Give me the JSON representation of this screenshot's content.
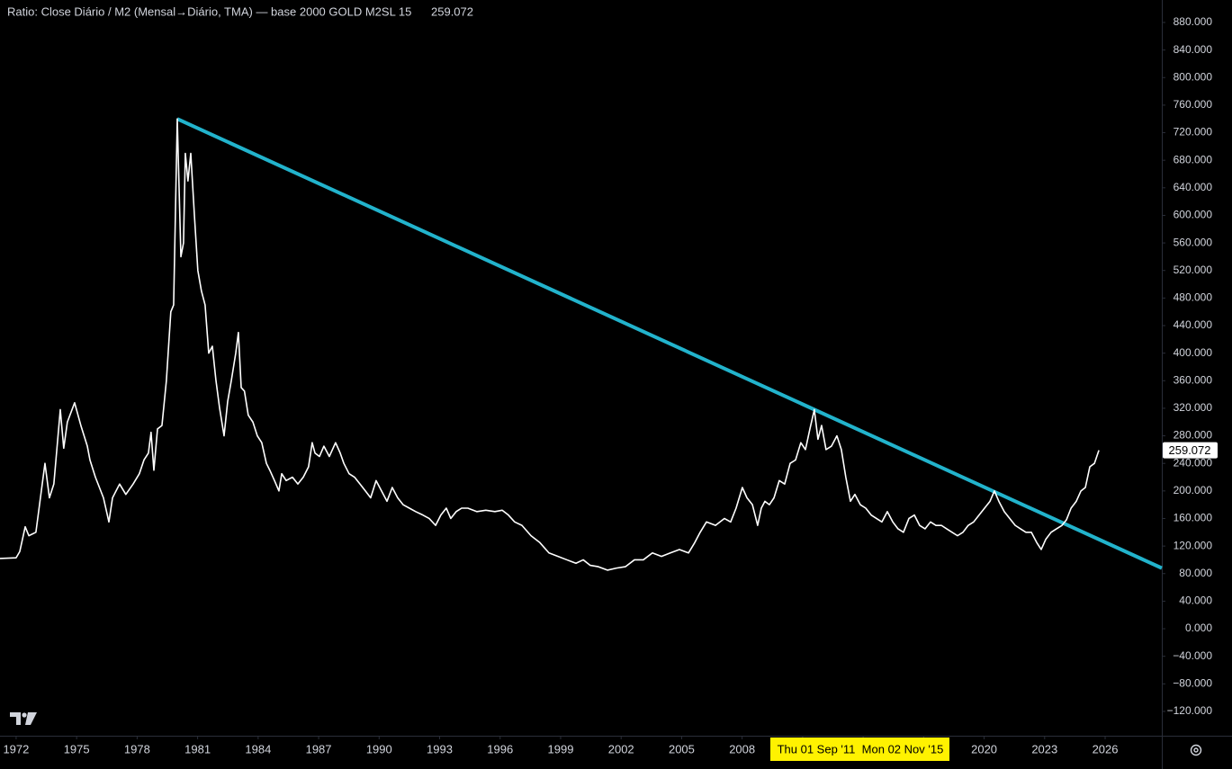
{
  "chart_data": {
    "type": "line",
    "title": "Ratio: Close Diário / M2 (Mensal→Diário, TMA) — base 2000 GOLD M2SL 15",
    "color": "#ffffff",
    "x": [
      1971.2,
      1972.0,
      1972.18,
      1972.45,
      1972.63,
      1972.98,
      1973.16,
      1973.43,
      1973.65,
      1973.87,
      1974.19,
      1974.36,
      1974.54,
      1974.9,
      1975.21,
      1975.53,
      1975.66,
      1975.93,
      1976.33,
      1976.6,
      1976.78,
      1977.13,
      1977.44,
      1977.8,
      1978.11,
      1978.34,
      1978.56,
      1978.69,
      1978.83,
      1979.01,
      1979.23,
      1979.45,
      1979.67,
      1979.81,
      1979.99,
      1980.17,
      1980.3,
      1980.39,
      1980.52,
      1980.66,
      1980.84,
      1981.01,
      1981.19,
      1981.37,
      1981.55,
      1981.73,
      1981.91,
      1982.09,
      1982.31,
      1982.49,
      1982.67,
      1982.89,
      1983.02,
      1983.16,
      1983.32,
      1983.51,
      1983.74,
      1983.96,
      1984.18,
      1984.41,
      1984.58,
      1984.81,
      1985.03,
      1985.17,
      1985.39,
      1985.7,
      1985.97,
      1986.24,
      1986.5,
      1986.68,
      1986.82,
      1987.04,
      1987.26,
      1987.53,
      1987.84,
      1988.07,
      1988.25,
      1988.51,
      1988.78,
      1989.05,
      1989.32,
      1989.58,
      1989.85,
      1990.12,
      1990.39,
      1990.65,
      1990.92,
      1991.19,
      1991.5,
      1991.81,
      1992.17,
      1992.48,
      1992.8,
      1993.06,
      1993.33,
      1993.55,
      1993.82,
      1994.09,
      1994.4,
      1994.85,
      1995.29,
      1995.74,
      1996.1,
      1996.41,
      1996.72,
      1997.08,
      1997.53,
      1997.97,
      1998.42,
      1998.87,
      1999.31,
      1999.76,
      2000.12,
      2000.47,
      2000.87,
      2001.32,
      2001.77,
      2002.21,
      2002.66,
      2003.1,
      2003.55,
      2004.0,
      2004.44,
      2004.89,
      2005.34,
      2005.65,
      2005.92,
      2006.23,
      2006.68,
      2007.12,
      2007.43,
      2007.7,
      2008.01,
      2008.24,
      2008.51,
      2008.77,
      2008.95,
      2009.13,
      2009.35,
      2009.58,
      2009.84,
      2010.11,
      2010.38,
      2010.65,
      2010.91,
      2011.14,
      2011.36,
      2011.58,
      2011.76,
      2011.94,
      2012.16,
      2012.43,
      2012.7,
      2012.92,
      2013.14,
      2013.37,
      2013.59,
      2013.86,
      2014.13,
      2014.4,
      2014.66,
      2014.93,
      2015.2,
      2015.47,
      2015.73,
      2016.0,
      2016.27,
      2016.54,
      2016.8,
      2017.07,
      2017.34,
      2017.61,
      2017.88,
      2018.14,
      2018.41,
      2018.68,
      2018.95,
      2019.21,
      2019.48,
      2019.75,
      2020.02,
      2020.29,
      2020.51,
      2020.73,
      2021.0,
      2021.27,
      2021.54,
      2021.8,
      2022.07,
      2022.34,
      2022.61,
      2022.83,
      2023.06,
      2023.32,
      2023.59,
      2023.86,
      2024.08,
      2024.31,
      2024.57,
      2024.8,
      2025.02,
      2025.24,
      2025.47,
      2025.69
    ],
    "values": [
      102,
      103,
      112,
      148,
      135,
      140,
      180,
      240,
      190,
      210,
      318,
      262,
      300,
      328,
      295,
      265,
      245,
      220,
      190,
      155,
      190,
      210,
      195,
      210,
      225,
      245,
      255,
      285,
      230,
      290,
      295,
      360,
      460,
      470,
      740,
      540,
      560,
      690,
      650,
      690,
      600,
      520,
      490,
      470,
      400,
      410,
      360,
      320,
      280,
      330,
      360,
      400,
      430,
      350,
      345,
      310,
      300,
      280,
      270,
      240,
      230,
      215,
      200,
      225,
      215,
      220,
      210,
      220,
      235,
      270,
      255,
      250,
      265,
      250,
      270,
      255,
      240,
      225,
      220,
      210,
      200,
      190,
      215,
      200,
      185,
      205,
      190,
      180,
      175,
      170,
      165,
      160,
      150,
      165,
      175,
      160,
      170,
      175,
      175,
      170,
      172,
      170,
      172,
      165,
      155,
      150,
      135,
      125,
      110,
      105,
      100,
      95,
      100,
      92,
      90,
      85,
      88,
      90,
      100,
      100,
      110,
      105,
      110,
      115,
      110,
      125,
      140,
      155,
      150,
      160,
      155,
      175,
      205,
      190,
      180,
      150,
      175,
      185,
      180,
      190,
      215,
      210,
      240,
      245,
      270,
      260,
      290,
      318,
      275,
      295,
      260,
      265,
      280,
      260,
      220,
      185,
      195,
      180,
      175,
      165,
      160,
      155,
      170,
      155,
      145,
      140,
      160,
      165,
      150,
      145,
      155,
      150,
      150,
      145,
      140,
      135,
      140,
      150,
      155,
      165,
      175,
      185,
      200,
      185,
      170,
      160,
      150,
      145,
      140,
      140,
      125,
      115,
      130,
      140,
      145,
      150,
      158,
      175,
      185,
      200,
      205,
      235,
      240,
      259.072
    ],
    "trendline": {
      "x": [
        1979.99,
        2028.81
      ],
      "values": [
        740,
        88
      ],
      "color": "#22b3cc"
    },
    "xlim": [
      1971.2,
      2028.81
    ],
    "ylim": [
      -155.3,
      912.6
    ],
    "xticks": [
      1972,
      1975,
      1978,
      1981,
      1984,
      1987,
      1990,
      1993,
      1996,
      1999,
      2002,
      2005,
      2008,
      2011,
      2014,
      2017,
      2020,
      2023,
      2026
    ],
    "yticks": [
      {
        "value": 880,
        "label": "880.000"
      },
      {
        "value": 840,
        "label": "840.000"
      },
      {
        "value": 800,
        "label": "800.000"
      },
      {
        "value": 760,
        "label": "760.000"
      },
      {
        "value": 720,
        "label": "720.000"
      },
      {
        "value": 680,
        "label": "680.000"
      },
      {
        "value": 640,
        "label": "640.000"
      },
      {
        "value": 600,
        "label": "600.000"
      },
      {
        "value": 560,
        "label": "560.000"
      },
      {
        "value": 520,
        "label": "520.000"
      },
      {
        "value": 480,
        "label": "480.000"
      },
      {
        "value": 440,
        "label": "440.000"
      },
      {
        "value": 400,
        "label": "400.000"
      },
      {
        "value": 360,
        "label": "360.000"
      },
      {
        "value": 320,
        "label": "320.000"
      },
      {
        "value": 280,
        "label": "280.000"
      },
      {
        "value": 240,
        "label": "240.000"
      },
      {
        "value": 200,
        "label": "200.000"
      },
      {
        "value": 160,
        "label": "160.000"
      },
      {
        "value": 120,
        "label": "120.000"
      },
      {
        "value": 80,
        "label": "80.000"
      },
      {
        "value": 40,
        "label": "40.000"
      },
      {
        "value": 0,
        "label": "0.000"
      },
      {
        "value": -40,
        "label": "−40.000"
      },
      {
        "value": -80,
        "label": "−80.000"
      },
      {
        "value": -120,
        "label": "−120.000"
      }
    ],
    "x_markers": [
      {
        "label": "Mon 02 Nov '15"
      },
      {
        "label": "Thu 01 Sep '11"
      }
    ],
    "grid": false
  }
}
